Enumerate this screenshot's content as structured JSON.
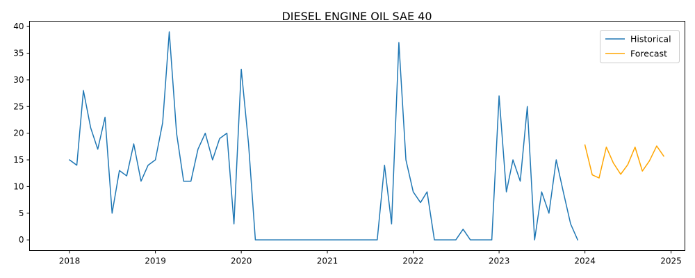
{
  "chart_data": {
    "type": "line",
    "title": "DIESEL ENGINE OIL  SAE 40",
    "xlabel": "",
    "ylabel": "",
    "x_ticks": [
      "2018",
      "2019",
      "2020",
      "2021",
      "2022",
      "2023",
      "2024",
      "2025"
    ],
    "y_ticks": [
      "0",
      "5",
      "10",
      "15",
      "20",
      "25",
      "30",
      "35",
      "40"
    ],
    "xlim": [
      "2017-07-15",
      "2025-03-01"
    ],
    "ylim": [
      -2,
      41
    ],
    "grid": false,
    "legend_position": "top-right",
    "series": [
      {
        "name": "Historical",
        "color": "#1f77b4",
        "x": [
          "2018-01",
          "2018-02",
          "2018-03",
          "2018-04",
          "2018-05",
          "2018-06",
          "2018-07",
          "2018-08",
          "2018-09",
          "2018-10",
          "2018-11",
          "2018-12",
          "2019-01",
          "2019-02",
          "2019-03",
          "2019-04",
          "2019-05",
          "2019-06",
          "2019-07",
          "2019-08",
          "2019-09",
          "2019-10",
          "2019-11",
          "2019-12",
          "2020-01",
          "2020-02",
          "2020-03",
          "2020-04",
          "2020-05",
          "2020-06",
          "2020-07",
          "2020-08",
          "2020-09",
          "2020-10",
          "2020-11",
          "2020-12",
          "2021-01",
          "2021-02",
          "2021-03",
          "2021-04",
          "2021-05",
          "2021-06",
          "2021-07",
          "2021-08",
          "2021-09",
          "2021-10",
          "2021-11",
          "2021-12",
          "2022-01",
          "2022-02",
          "2022-03",
          "2022-04",
          "2022-05",
          "2022-06",
          "2022-07",
          "2022-08",
          "2022-09",
          "2022-10",
          "2022-11",
          "2022-12",
          "2023-01",
          "2023-02",
          "2023-03",
          "2023-04",
          "2023-05",
          "2023-06",
          "2023-07",
          "2023-08",
          "2023-09",
          "2023-10",
          "2023-11",
          "2023-12"
        ],
        "values": [
          15,
          14,
          28,
          21,
          17,
          23,
          5,
          13,
          12,
          18,
          11,
          14,
          15,
          22,
          39,
          20,
          11,
          11,
          17,
          20,
          15,
          19,
          20,
          3,
          32,
          18,
          0,
          0,
          0,
          0,
          0,
          0,
          0,
          0,
          0,
          0,
          0,
          0,
          0,
          0,
          0,
          0,
          0,
          0,
          14,
          3,
          37,
          15,
          9,
          7,
          9,
          0,
          0,
          0,
          0,
          2,
          0,
          0,
          0,
          0,
          27,
          9,
          15,
          11,
          25,
          0,
          9,
          5,
          15,
          9,
          3,
          0
        ]
      },
      {
        "name": "Forecast",
        "color": "#ffa500",
        "x": [
          "2024-01",
          "2024-02",
          "2024-03",
          "2024-04",
          "2024-05",
          "2024-06",
          "2024-07",
          "2024-08",
          "2024-09",
          "2024-10",
          "2024-11",
          "2024-12"
        ],
        "values": [
          17.8,
          12.2,
          11.6,
          17.4,
          14.4,
          12.3,
          14.1,
          17.4,
          12.9,
          14.8,
          17.6,
          15.7
        ]
      }
    ]
  }
}
